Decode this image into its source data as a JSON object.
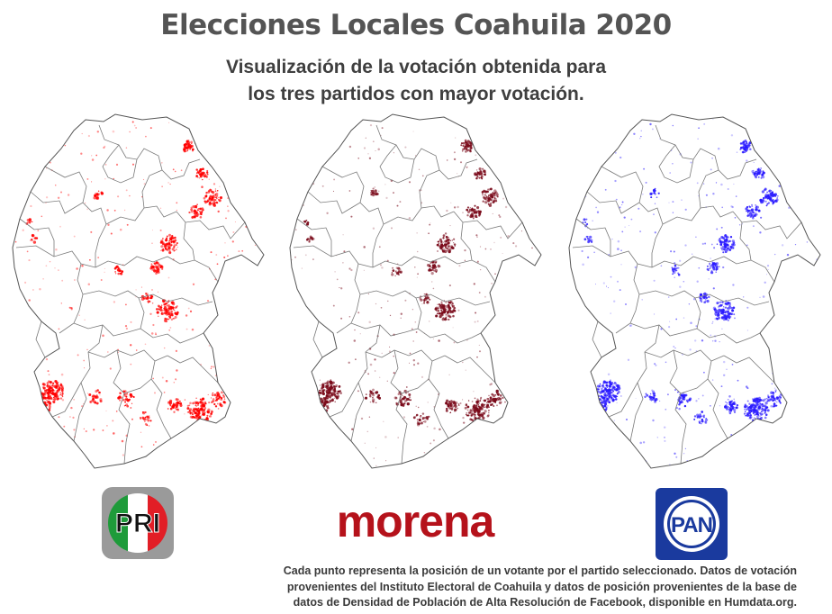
{
  "title": "Elecciones Locales Coahuila 2020",
  "subtitle": {
    "line1": "Visualización de la votación obtenida para",
    "line2": "los tres partidos con mayor votación."
  },
  "maps": [
    {
      "party": "PRI",
      "dot_color": "#ff0000"
    },
    {
      "party": "morena",
      "dot_color": "#7a0a1a"
    },
    {
      "party": "PAN",
      "dot_color": "#2a1aff"
    }
  ],
  "logos": {
    "pri": {
      "text": "PRI",
      "colors": {
        "green": "#1e9b3a",
        "white": "#ffffff",
        "red": "#e21e26",
        "frame": "#9a9a9a"
      }
    },
    "morena": {
      "text": "morena",
      "color": "#b5121b"
    },
    "pan": {
      "text": "PAN",
      "colors": {
        "blue": "#1a3a9e",
        "white": "#ffffff"
      }
    }
  },
  "footnote": {
    "line1": "Cada punto representa la posición de un votante por el partido seleccionado. Datos de votación",
    "line2": "provenientes del Instituto Electoral de Coahuila y datos de posición provenientes de la base de",
    "line3": "datos de Densidad de Población de Alta Resolución de Facebook, disponible en Humdata.org."
  }
}
